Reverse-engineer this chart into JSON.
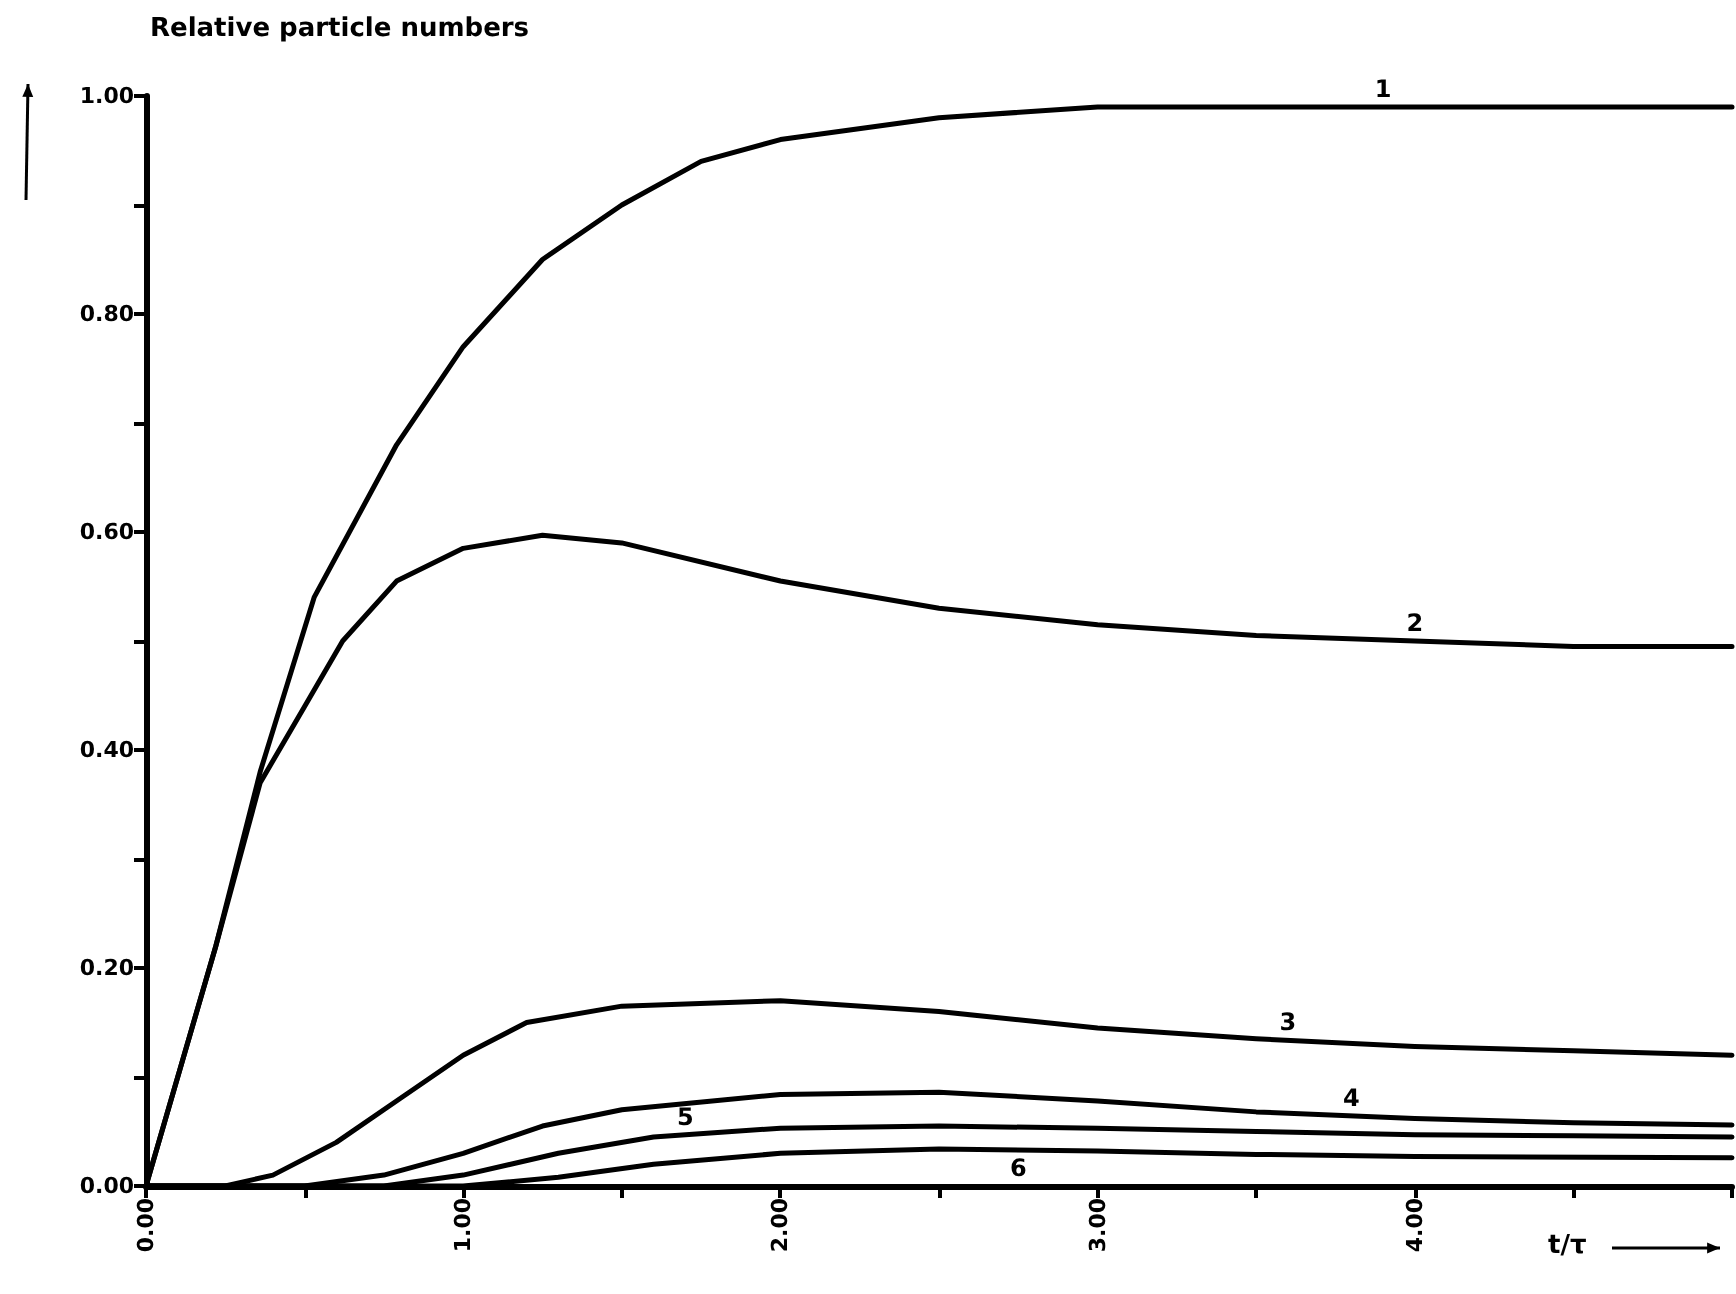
{
  "chart_data": {
    "type": "line",
    "ylabel": "Relative particle numbers",
    "xlabel": "t/τ",
    "xlim": [
      0,
      5
    ],
    "ylim": [
      0,
      1
    ],
    "xticks": [
      {
        "value": 0,
        "label": "0.00"
      },
      {
        "value": 0.5,
        "label": null
      },
      {
        "value": 1,
        "label": "1.00"
      },
      {
        "value": 1.5,
        "label": null
      },
      {
        "value": 2,
        "label": "2.00"
      },
      {
        "value": 2.5,
        "label": null
      },
      {
        "value": 3,
        "label": "3.00"
      },
      {
        "value": 3.5,
        "label": null
      },
      {
        "value": 4,
        "label": "4.00"
      },
      {
        "value": 4.5,
        "label": null
      },
      {
        "value": 5,
        "label": null
      }
    ],
    "yticks": [
      {
        "value": 0,
        "label": "0.00"
      },
      {
        "value": 0.1,
        "label": null
      },
      {
        "value": 0.2,
        "label": "0.20"
      },
      {
        "value": 0.3,
        "label": null
      },
      {
        "value": 0.4,
        "label": "0.40"
      },
      {
        "value": 0.5,
        "label": null
      },
      {
        "value": 0.6,
        "label": "0.60"
      },
      {
        "value": 0.7,
        "label": null
      },
      {
        "value": 0.8,
        "label": "0.80"
      },
      {
        "value": 0.9,
        "label": null
      },
      {
        "value": 1,
        "label": "1.00"
      }
    ],
    "grid": false,
    "marker": "none",
    "line_style": "solid",
    "series": [
      {
        "name": "1",
        "color": "#000000",
        "x": [
          0,
          0.22,
          0.36,
          0.53,
          0.79,
          1,
          1.25,
          1.5,
          1.75,
          2,
          2.5,
          3,
          3.5,
          4,
          4.5,
          5
        ],
        "values": [
          0,
          0.22,
          0.38,
          0.54,
          0.68,
          0.77,
          0.85,
          0.9,
          0.94,
          0.96,
          0.98,
          0.99,
          0.99,
          0.99,
          0.99,
          0.99
        ]
      },
      {
        "name": "2",
        "color": "#000000",
        "x": [
          0,
          0.22,
          0.36,
          0.5,
          0.62,
          0.79,
          1,
          1.25,
          1.5,
          2,
          2.5,
          3,
          3.5,
          4,
          4.5,
          5
        ],
        "values": [
          0,
          0.22,
          0.37,
          0.44,
          0.5,
          0.555,
          0.585,
          0.597,
          0.59,
          0.555,
          0.53,
          0.515,
          0.505,
          0.5,
          0.495,
          0.495
        ]
      },
      {
        "name": "3",
        "color": "#000000",
        "x": [
          0,
          0.25,
          0.4,
          0.6,
          0.8,
          1,
          1.2,
          1.5,
          2,
          2.5,
          3,
          3.5,
          4,
          4.5,
          5
        ],
        "values": [
          0,
          0,
          0.01,
          0.04,
          0.08,
          0.12,
          0.15,
          0.165,
          0.17,
          0.16,
          0.145,
          0.135,
          0.128,
          0.124,
          0.12
        ]
      },
      {
        "name": "4",
        "color": "#000000",
        "x": [
          0,
          0.5,
          0.75,
          1,
          1.25,
          1.5,
          2,
          2.5,
          3,
          3.5,
          4,
          4.5,
          5
        ],
        "values": [
          0,
          0,
          0.01,
          0.03,
          0.055,
          0.07,
          0.084,
          0.086,
          0.078,
          0.068,
          0.062,
          0.058,
          0.056
        ]
      },
      {
        "name": "5",
        "color": "#000000",
        "x": [
          0,
          0.75,
          1,
          1.3,
          1.6,
          2,
          2.5,
          3,
          3.5,
          4,
          4.5,
          5
        ],
        "values": [
          0,
          0,
          0.01,
          0.03,
          0.045,
          0.053,
          0.055,
          0.053,
          0.05,
          0.047,
          0.046,
          0.045
        ]
      },
      {
        "name": "6",
        "color": "#000000",
        "x": [
          0,
          1,
          1.3,
          1.6,
          2,
          2.5,
          3,
          3.5,
          4,
          5
        ],
        "values": [
          0,
          0,
          0.008,
          0.02,
          0.03,
          0.034,
          0.032,
          0.029,
          0.027,
          0.026
        ]
      }
    ]
  }
}
